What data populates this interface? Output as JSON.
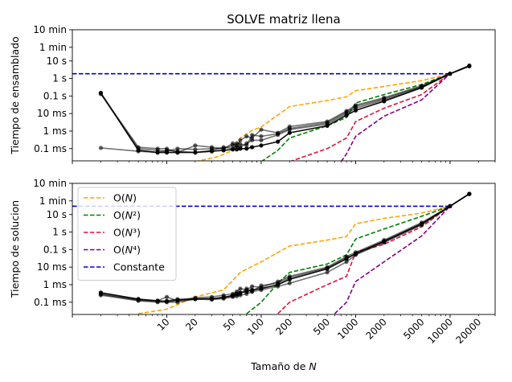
{
  "chart_data": [
    {
      "type": "line",
      "title": "SOLVE matriz llena",
      "ylabel": "Tiempo de ensamblado",
      "xlabel": "",
      "xscale": "log",
      "yscale": "log",
      "xlim": [
        1,
        30000
      ],
      "ylim_seconds": [
        2e-05,
        600
      ],
      "yticks": [
        {
          "value": 0.0001,
          "label": "0.1 ms"
        },
        {
          "value": 0.001,
          "label": "1 ms"
        },
        {
          "value": 0.01,
          "label": "10 ms"
        },
        {
          "value": 0.1,
          "label": "0.1 s"
        },
        {
          "value": 1,
          "label": "1 s"
        },
        {
          "value": 10,
          "label": "10 s"
        },
        {
          "value": 60,
          "label": "1 min"
        },
        {
          "value": 600,
          "label": "10 min"
        }
      ],
      "reference_lines": [
        {
          "name": "O(N)",
          "color": "#ffa500",
          "x": [
            20,
            35,
            50,
            60,
            80,
            100,
            200,
            500,
            800,
            1000,
            2000,
            5000,
            10000
          ],
          "y": [
            1.8e-05,
            3.5e-05,
            8e-05,
            0.0004,
            0.0011,
            0.0017,
            0.025,
            0.055,
            0.09,
            0.2,
            0.35,
            0.75,
            1.85
          ]
        },
        {
          "name": "O(N²)",
          "color": "#008000",
          "x": [
            100,
            150,
            200,
            500,
            800,
            1000,
            2000,
            5000,
            10000
          ],
          "y": [
            1.8e-05,
            8e-05,
            0.0004,
            0.002,
            0.006,
            0.04,
            0.12,
            0.45,
            1.85
          ]
        },
        {
          "name": "O(N³)",
          "color": "#dc143c",
          "x": [
            200,
            500,
            800,
            1000,
            2000,
            5000,
            10000
          ],
          "y": [
            1.8e-05,
            0.0001,
            0.0004,
            0.0035,
            0.02,
            0.12,
            1.85
          ]
        },
        {
          "name": "O(N⁴)",
          "color": "#800080",
          "x": [
            700,
            800,
            1000,
            2000,
            5000,
            10000
          ],
          "y": [
            1.8e-05,
            5e-05,
            0.0005,
            0.007,
            0.06,
            1.85
          ]
        },
        {
          "name": "Constante",
          "color": "#0000cd",
          "x": [
            1,
            10000
          ],
          "y": [
            1.85,
            1.85
          ]
        }
      ],
      "series": [
        {
          "x": [
            2,
            5,
            8,
            10,
            13,
            20,
            30,
            40,
            50,
            55,
            60,
            70,
            80,
            100,
            150,
            200,
            500,
            800,
            1000,
            2000,
            5000,
            10000,
            16000
          ],
          "y": [
            0.15,
            8e-05,
            6e-05,
            6e-05,
            6e-05,
            6e-05,
            7e-05,
            8e-05,
            9e-05,
            9e-05,
            0.0001,
            0.0001,
            0.00012,
            0.00015,
            0.00025,
            0.0008,
            0.002,
            0.008,
            0.015,
            0.05,
            0.3,
            1.85,
            5
          ]
        },
        {
          "x": [
            2,
            5,
            8,
            10,
            13,
            20,
            30,
            40,
            50,
            55,
            60,
            70,
            80,
            100,
            150,
            200,
            500,
            800,
            1000,
            2000,
            5000,
            10000,
            16000
          ],
          "y": [
            0.13,
            0.0001,
            8e-05,
            7e-05,
            0.0001,
            9e-05,
            0.0001,
            0.0001,
            0.00015,
            0.0002,
            0.00018,
            0.00015,
            0.0006,
            0.0005,
            0.0007,
            0.0014,
            0.003,
            0.012,
            0.025,
            0.07,
            0.35,
            1.85,
            5.5
          ]
        },
        {
          "x": [
            2,
            5,
            8,
            10,
            13,
            20,
            30,
            40,
            50,
            55,
            60,
            70,
            80,
            100,
            150,
            200,
            500,
            800,
            1000,
            2000,
            5000,
            10000,
            16000
          ],
          "y": [
            0.14,
            0.00012,
            0.0001,
            0.0001,
            6e-05,
            0.00015,
            0.00012,
            0.0001,
            0.0002,
            0.00012,
            0.0003,
            0.0005,
            0.0004,
            0.0012,
            0.0008,
            0.0018,
            0.0035,
            0.014,
            0.03,
            0.08,
            0.38,
            1.85,
            5.2
          ]
        },
        {
          "x": [
            2,
            5,
            8,
            10,
            13,
            20,
            30,
            40,
            50,
            55,
            60,
            70,
            80,
            100,
            150,
            200,
            500,
            800,
            1000,
            2000,
            5000,
            10000,
            16000
          ],
          "y": [
            0.00011,
            7e-05,
            6e-05,
            8e-05,
            7e-05,
            6e-05,
            8e-05,
            0.00012,
            0.0001,
            0.00015,
            0.00012,
            0.0002,
            0.0003,
            0.0003,
            0.0006,
            0.0012,
            0.0025,
            0.01,
            0.02,
            0.06,
            0.32,
            1.85,
            5
          ]
        }
      ]
    },
    {
      "type": "line",
      "title": "",
      "ylabel": "Tiempo de solucion",
      "xlabel": "Tamaño de N",
      "xscale": "log",
      "yscale": "log",
      "xlim": [
        1,
        30000
      ],
      "ylim_seconds": [
        2e-05,
        600
      ],
      "xticks": [
        10,
        20,
        50,
        100,
        200,
        500,
        1000,
        2000,
        5000,
        10000,
        20000
      ],
      "yticks": [
        {
          "value": 0.0001,
          "label": "0.1 ms"
        },
        {
          "value": 0.001,
          "label": "1 ms"
        },
        {
          "value": 0.01,
          "label": "10 ms"
        },
        {
          "value": 0.1,
          "label": "0.1 s"
        },
        {
          "value": 1,
          "label": "1 s"
        },
        {
          "value": 10,
          "label": "10 s"
        },
        {
          "value": 60,
          "label": "1 min"
        },
        {
          "value": 600,
          "label": "10 min"
        }
      ],
      "legend": {
        "position": "top-left",
        "entries": [
          {
            "pre": "O(",
            "italic": "N",
            "post": ")",
            "color": "#ffa500"
          },
          {
            "pre": "O(",
            "italic": "N",
            "post": "²)",
            "color": "#008000"
          },
          {
            "pre": "O(",
            "italic": "N",
            "post": "³)",
            "color": "#dc143c"
          },
          {
            "pre": "O(",
            "italic": "N",
            "post": "⁴)",
            "color": "#800080"
          },
          {
            "pre": "Constante",
            "italic": "",
            "post": "",
            "color": "#0000cd"
          }
        ]
      },
      "reference_lines": [
        {
          "name": "O(N)",
          "color": "#ffa500",
          "x": [
            5,
            10,
            20,
            40,
            60,
            100,
            200,
            500,
            800,
            1000,
            2000,
            5000,
            10000
          ],
          "y": [
            2.2e-05,
            4e-05,
            0.0002,
            0.0005,
            0.005,
            0.02,
            0.16,
            0.35,
            0.55,
            3,
            6,
            12,
            30
          ]
        },
        {
          "name": "O(N²)",
          "color": "#008000",
          "x": [
            70,
            100,
            150,
            200,
            500,
            800,
            1000,
            2000,
            5000,
            10000
          ],
          "y": [
            2.2e-05,
            0.0001,
            0.0012,
            0.005,
            0.015,
            0.05,
            0.4,
            1.5,
            8,
            30
          ]
        },
        {
          "name": "O(N³)",
          "color": "#dc143c",
          "x": [
            150,
            200,
            500,
            800,
            1000,
            2000,
            5000,
            10000
          ],
          "y": [
            2.2e-05,
            0.0001,
            0.001,
            0.003,
            0.07,
            0.2,
            2,
            30
          ]
        },
        {
          "name": "O(N⁴)",
          "color": "#800080",
          "x": [
            600,
            800,
            1000,
            2000,
            5000,
            10000
          ],
          "y": [
            2.2e-05,
            0.0001,
            0.0015,
            0.02,
            0.6,
            30
          ]
        },
        {
          "name": "Constante",
          "color": "#0000cd",
          "x": [
            1,
            10000
          ],
          "y": [
            30,
            30
          ]
        }
      ],
      "series": [
        {
          "x": [
            2,
            5,
            8,
            10,
            13,
            20,
            30,
            40,
            50,
            55,
            60,
            70,
            80,
            100,
            150,
            200,
            500,
            800,
            1000,
            2000,
            5000,
            10000,
            16000
          ],
          "y": [
            0.00035,
            0.00015,
            0.00012,
            0.00011,
            0.00013,
            0.00015,
            0.00016,
            0.00018,
            0.00025,
            0.0003,
            0.00035,
            0.0004,
            0.0005,
            0.0006,
            0.001,
            0.002,
            0.008,
            0.03,
            0.06,
            0.3,
            3,
            30,
            150
          ]
        },
        {
          "x": [
            2,
            5,
            8,
            10,
            13,
            20,
            30,
            40,
            50,
            55,
            60,
            70,
            80,
            100,
            150,
            200,
            500,
            800,
            1000,
            2000,
            5000,
            10000,
            16000
          ],
          "y": [
            0.00025,
            0.00012,
            0.0001,
            0.0001,
            0.0001,
            0.00015,
            0.00014,
            0.00016,
            0.0002,
            0.00022,
            0.00025,
            0.0003,
            0.0004,
            0.0005,
            0.0008,
            0.0012,
            0.005,
            0.02,
            0.05,
            0.25,
            2.5,
            30,
            150
          ]
        },
        {
          "x": [
            2,
            5,
            8,
            10,
            13,
            20,
            30,
            40,
            50,
            55,
            60,
            70,
            80,
            100,
            150,
            200,
            500,
            800,
            1000,
            2000,
            5000,
            10000,
            16000
          ],
          "y": [
            0.0003,
            0.00014,
            0.00012,
            0.0002,
            0.00012,
            0.00018,
            0.0002,
            0.00025,
            0.0003,
            0.0004,
            0.0006,
            0.0005,
            0.0008,
            0.0007,
            0.0015,
            0.003,
            0.01,
            0.04,
            0.07,
            0.35,
            3.5,
            30,
            150
          ]
        },
        {
          "x": [
            2,
            5,
            8,
            10,
            13,
            20,
            30,
            40,
            50,
            55,
            60,
            70,
            80,
            100,
            150,
            200,
            500,
            800,
            1000,
            2000,
            5000,
            10000,
            16000
          ],
          "y": [
            0.00028,
            0.00013,
            0.00011,
            0.00012,
            0.00015,
            0.00016,
            0.00015,
            0.0002,
            0.00022,
            0.00028,
            0.0003,
            0.0006,
            0.0004,
            0.0009,
            0.0012,
            0.0025,
            0.009,
            0.035,
            0.055,
            0.28,
            2.8,
            30,
            150
          ]
        }
      ]
    }
  ]
}
